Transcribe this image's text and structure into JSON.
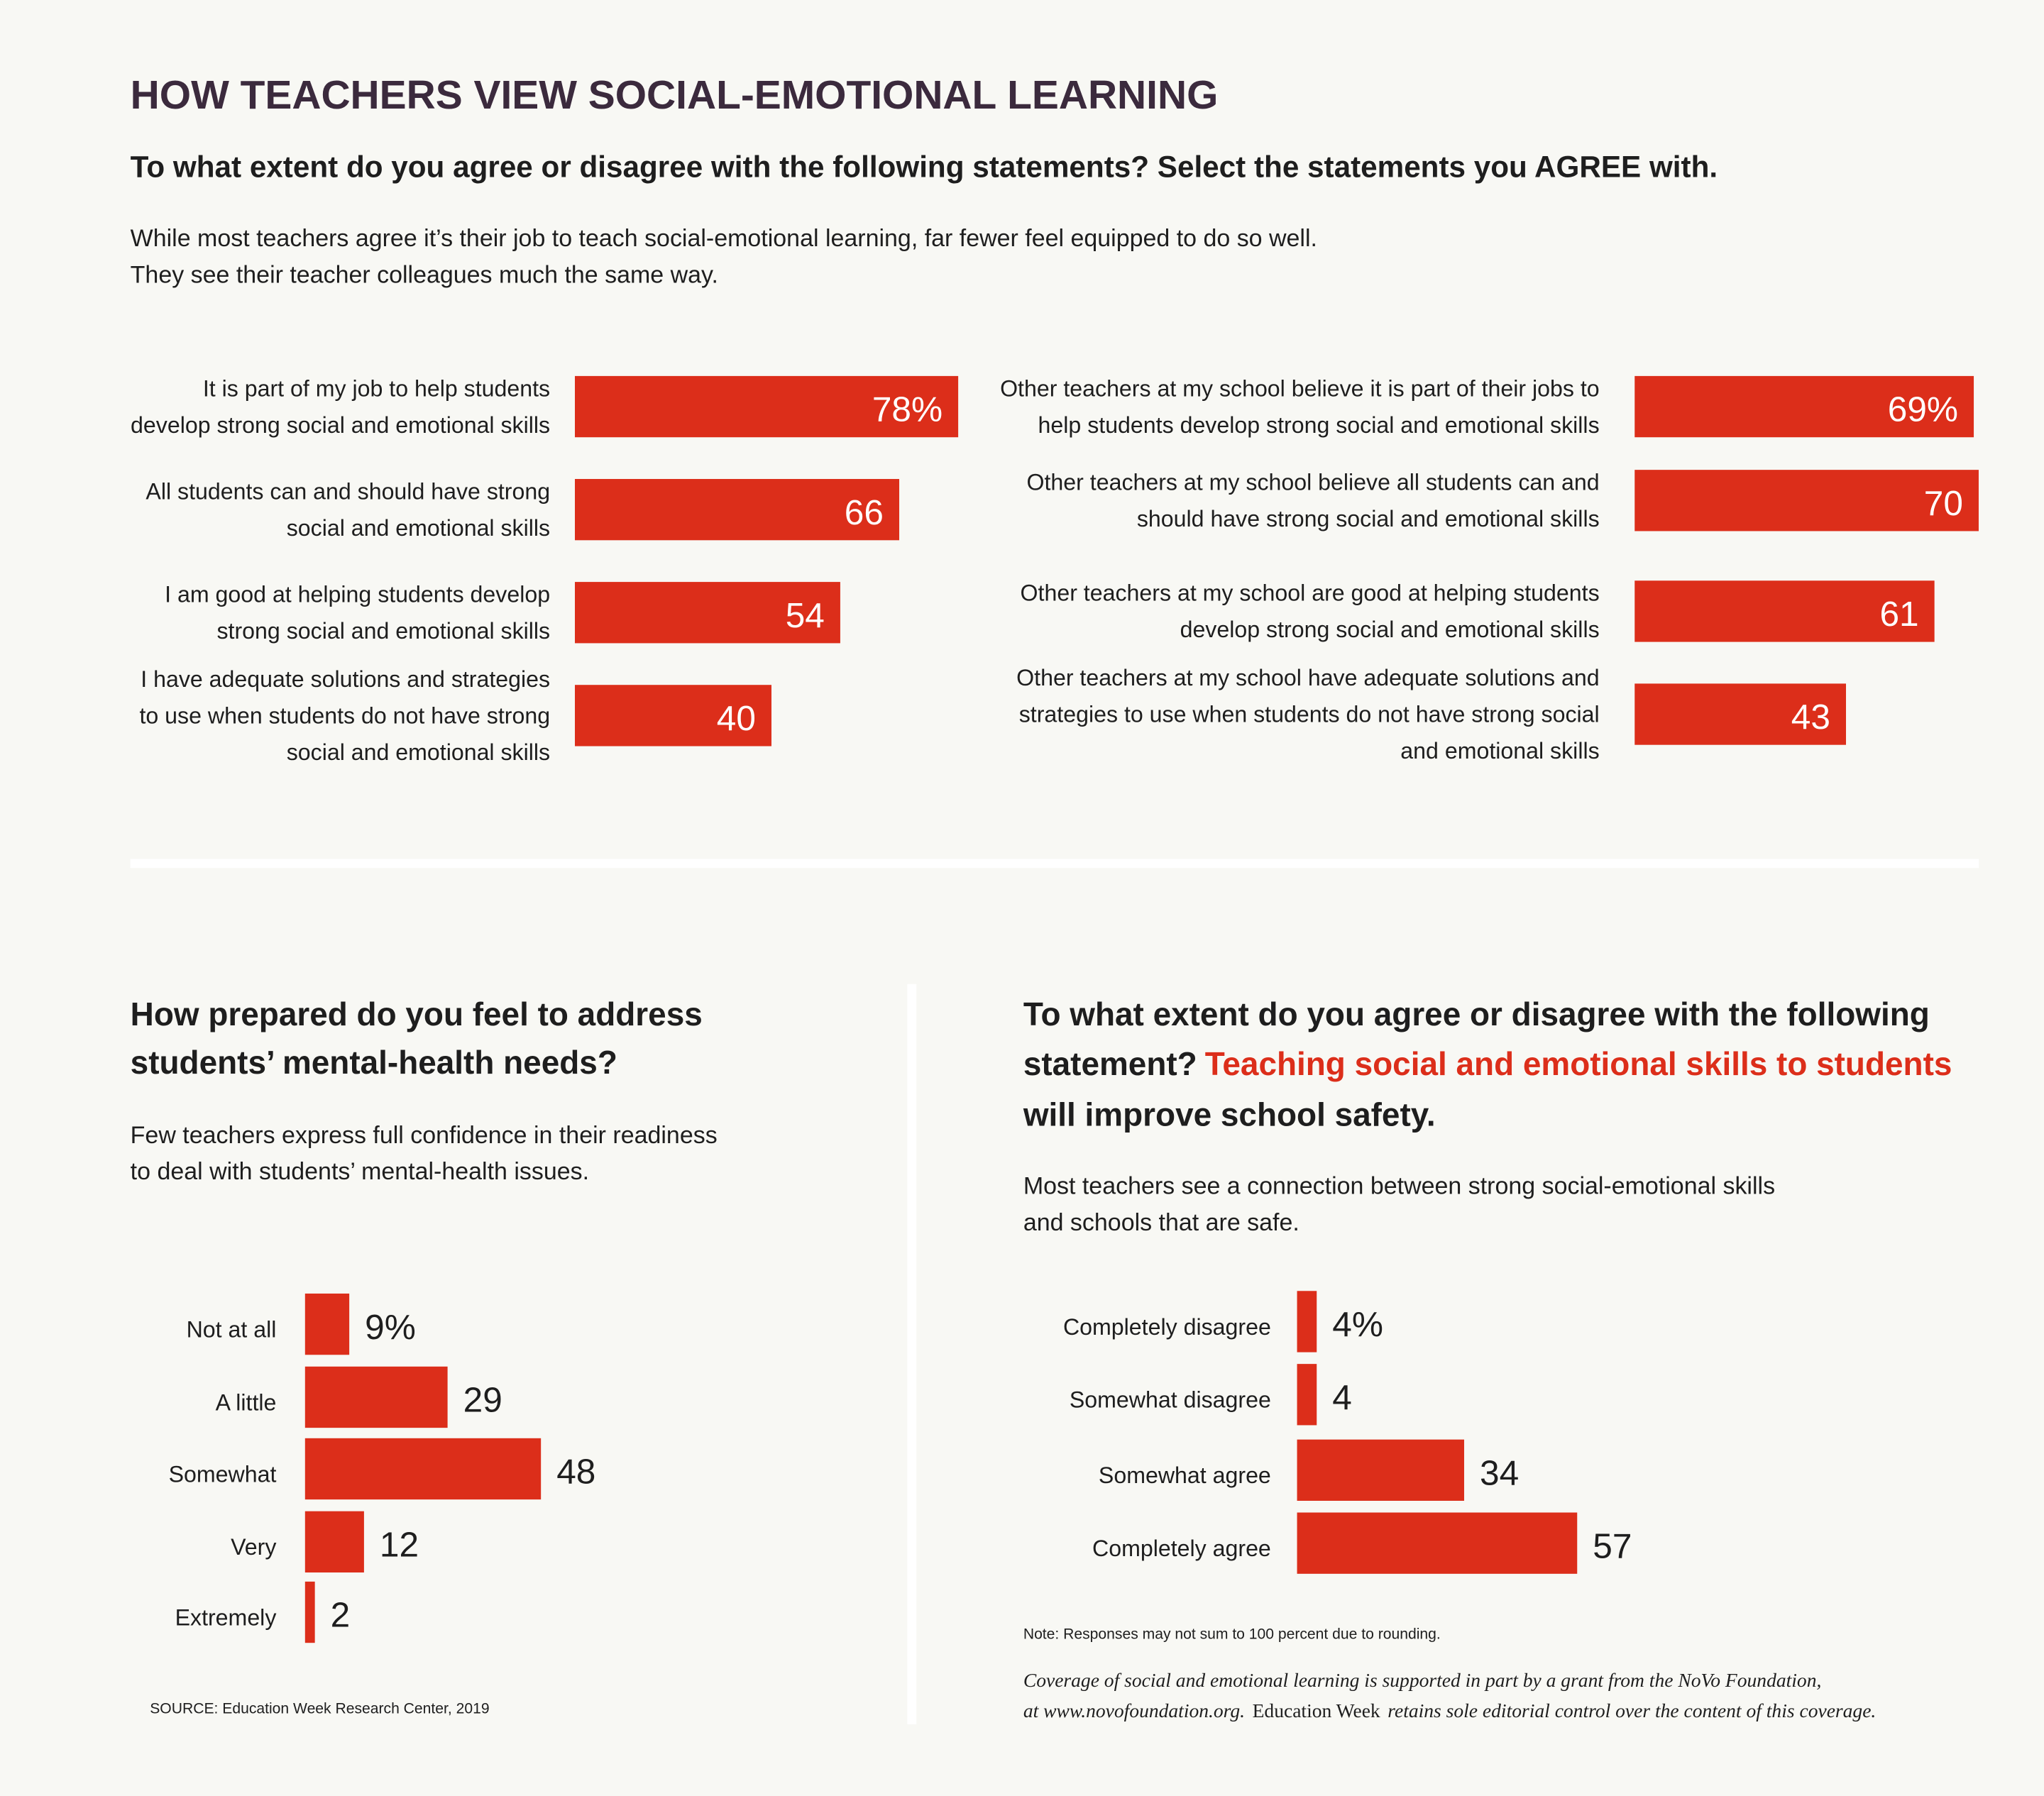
{
  "title": "HOW TEACHERS VIEW SOCIAL-EMOTIONAL LEARNING",
  "question": "To what extent do you agree or disagree with the following statements? Select the statements you AGREE with.",
  "intro": [
    "While most teachers agree it’s their job to teach social-emotional learning, far fewer feel equipped to do so well.",
    "They see their teacher colleagues much the same way."
  ],
  "chart_data": [
    {
      "type": "bar",
      "categories": [
        [
          "It is part of my job to help students",
          "develop strong social and emotional skills"
        ],
        [
          "All students can and should have strong",
          "social and emotional skills"
        ],
        [
          "I am good at helping students develop",
          "strong social and emotional skills"
        ],
        [
          "I have adequate solutions and strategies",
          "to use when students do not have strong",
          "social and emotional skills"
        ]
      ],
      "values": [
        78,
        66,
        54,
        40
      ],
      "value_labels": [
        "78%",
        "66",
        "54",
        "40"
      ],
      "color": "#dc2e1a"
    },
    {
      "type": "bar",
      "categories": [
        [
          "Other teachers at my school believe it is part of their jobs to",
          "help students develop strong social and emotional skills"
        ],
        [
          "Other teachers at my school believe all students can and",
          "should have strong social and emotional skills"
        ],
        [
          "Other teachers at my school are good at helping students",
          "develop strong social and emotional skills"
        ],
        [
          "Other teachers at my school have adequate solutions and",
          "strategies to use when students do not have strong social",
          "and emotional skills"
        ]
      ],
      "values": [
        69,
        70,
        61,
        43
      ],
      "value_labels": [
        "69%",
        "70",
        "61",
        "43"
      ],
      "color": "#dc2e1a"
    },
    {
      "type": "bar",
      "title": [
        "How prepared do you feel to address",
        "students’ mental-health needs?"
      ],
      "subtitle": [
        "Few teachers express full confidence in their readiness",
        "to deal with students’ mental-health issues."
      ],
      "categories": [
        "Not at all",
        "A little",
        "Somewhat",
        "Very",
        "Extremely"
      ],
      "values": [
        9,
        29,
        48,
        12,
        2
      ],
      "value_labels": [
        "9%",
        "29",
        "48",
        "12",
        "2"
      ],
      "color": "#dc2e1a"
    },
    {
      "type": "bar",
      "title": [
        "To what extent do you agree or disagree with the following",
        "statement?"
      ],
      "title_highlight": [
        "Teaching social and emotional skills to students",
        "will improve school safety."
      ],
      "subtitle": [
        "Most teachers see a connection between strong social-emotional skills",
        "and schools that are safe."
      ],
      "categories": [
        "Completely disagree",
        "Somewhat disagree",
        "Somewhat agree",
        "Completely agree"
      ],
      "values": [
        4,
        4,
        34,
        57
      ],
      "value_labels": [
        "4%",
        "4",
        "34",
        "57"
      ],
      "color": "#dc2e1a"
    }
  ],
  "note": "Note: Responses may not sum to 100 percent due to rounding.",
  "source": "SOURCE: Education Week Research Center, 2019",
  "coverage": [
    [
      "Coverage of social and emotional learning is supported in part by a grant from the NoVo Foundation,"
    ],
    [
      "at www.novofoundation.org.",
      "Education Week",
      "retains sole editorial control over the content of this coverage."
    ]
  ]
}
